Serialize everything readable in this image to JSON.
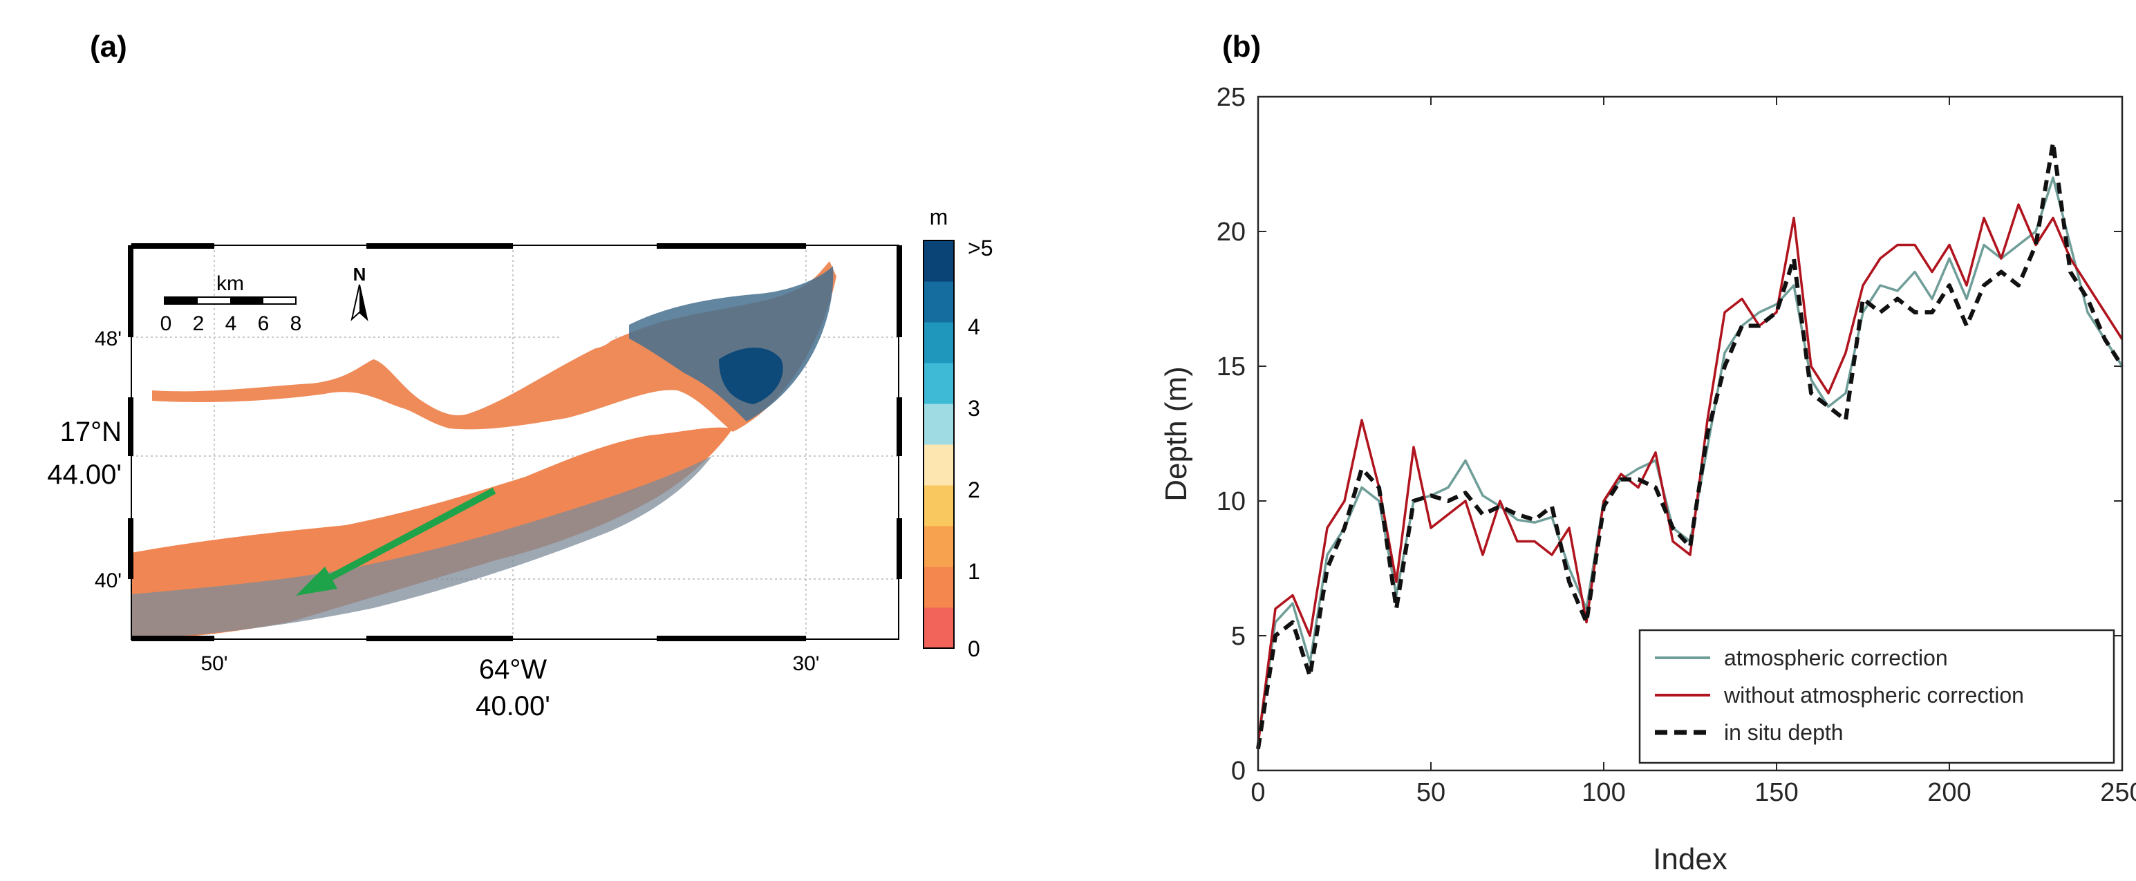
{
  "figure": {
    "panel_a_label": "(a)",
    "panel_b_label": "(b)"
  },
  "map": {
    "lat_ticks": [
      "48'",
      "17°N",
      "44.00'",
      "40'"
    ],
    "lon_ticks": [
      "50'",
      "64°W",
      "40.00'",
      "30'"
    ],
    "scale_bar": {
      "unit": "km",
      "ticks": [
        "0",
        "2",
        "4",
        "6",
        "8"
      ]
    },
    "north_label": "N",
    "colorbar": {
      "unit": "m",
      "labels": [
        ">5",
        "4",
        "3",
        "2",
        "1",
        "0"
      ],
      "colors": [
        "#f2635a",
        "#f4874e",
        "#f7a24e",
        "#f9c85e",
        "#fde6b0",
        "#9fdbe2",
        "#3fbad6",
        "#1f96bb",
        "#146c9f",
        "#0a4375"
      ]
    },
    "transect_color": "#1ea34a"
  },
  "chart_data": {
    "type": "line",
    "title": "",
    "xlabel": "Index",
    "ylabel": "Depth (m)",
    "xlim": [
      0,
      250
    ],
    "ylim": [
      0,
      25
    ],
    "xticks": [
      0,
      50,
      100,
      150,
      200,
      250
    ],
    "yticks": [
      0,
      5,
      10,
      15,
      20,
      25
    ],
    "legend_position": "bottom-right",
    "x": [
      0,
      5,
      10,
      15,
      20,
      25,
      30,
      35,
      40,
      45,
      50,
      55,
      60,
      65,
      70,
      75,
      80,
      85,
      90,
      95,
      100,
      105,
      110,
      115,
      120,
      125,
      130,
      135,
      140,
      145,
      150,
      155,
      160,
      165,
      170,
      175,
      180,
      185,
      190,
      195,
      200,
      205,
      210,
      215,
      220,
      225,
      230,
      235,
      240,
      245,
      250
    ],
    "series": [
      {
        "name": "atmospheric correction",
        "color": "#6f9e99",
        "dash": "solid",
        "values": [
          1.0,
          5.5,
          6.2,
          4.0,
          8.0,
          9.0,
          10.5,
          10.0,
          6.5,
          10.0,
          10.2,
          10.5,
          11.5,
          10.2,
          9.8,
          9.3,
          9.2,
          9.4,
          7.5,
          6.0,
          10.0,
          10.8,
          11.2,
          11.5,
          9.0,
          8.5,
          12.0,
          15.5,
          16.5,
          17.0,
          17.3,
          18.0,
          14.5,
          13.5,
          14.0,
          17.0,
          18.0,
          17.8,
          18.5,
          17.5,
          19.0,
          17.5,
          19.5,
          19.0,
          19.5,
          20.0,
          22.0,
          19.5,
          17.0,
          16.0,
          15.0
        ]
      },
      {
        "name": "without atmospheric correction",
        "color": "#b0141e",
        "dash": "solid",
        "values": [
          1.0,
          6.0,
          6.5,
          5.0,
          9.0,
          10.0,
          13.0,
          10.5,
          7.0,
          12.0,
          9.0,
          9.5,
          10.0,
          8.0,
          10.0,
          8.5,
          8.5,
          8.0,
          9.0,
          5.5,
          10.0,
          11.0,
          10.5,
          11.8,
          8.5,
          8.0,
          13.0,
          17.0,
          17.5,
          16.5,
          17.0,
          20.5,
          15.0,
          14.0,
          15.5,
          18.0,
          19.0,
          19.5,
          19.5,
          18.5,
          19.5,
          18.0,
          20.5,
          19.0,
          21.0,
          19.5,
          20.5,
          19.0,
          18.0,
          17.0,
          16.0
        ]
      },
      {
        "name": "in situ depth",
        "color": "#111111",
        "dash": "dashed",
        "values": [
          0.8,
          5.0,
          5.5,
          3.5,
          7.5,
          9.0,
          11.2,
          10.5,
          6.0,
          10.0,
          10.2,
          10.0,
          10.3,
          9.5,
          9.8,
          9.5,
          9.3,
          9.8,
          7.0,
          5.5,
          9.8,
          10.8,
          10.8,
          10.5,
          9.0,
          8.3,
          12.5,
          15.0,
          16.5,
          16.5,
          17.0,
          19.0,
          14.0,
          13.5,
          13.0,
          17.5,
          17.0,
          17.5,
          17.0,
          17.0,
          18.0,
          16.5,
          18.0,
          18.5,
          18.0,
          19.5,
          23.3,
          18.5,
          17.5,
          16.0,
          15.0
        ]
      }
    ]
  }
}
